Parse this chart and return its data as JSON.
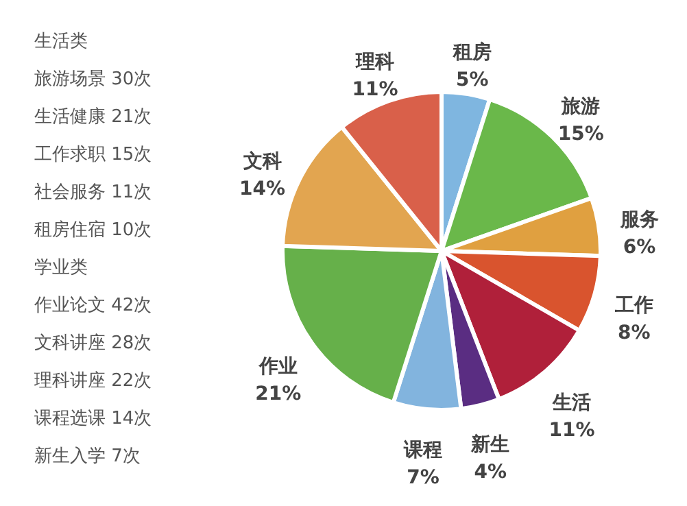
{
  "chart_data": {
    "type": "pie",
    "categories": [
      "租房",
      "旅游",
      "服务",
      "工作",
      "生活",
      "新生",
      "课程",
      "作业",
      "文科",
      "理科"
    ],
    "values": [
      5,
      15,
      6,
      8,
      11,
      4,
      7,
      21,
      14,
      11
    ],
    "value_labels": [
      "5%",
      "15%",
      "6%",
      "8%",
      "11%",
      "4%",
      "7%",
      "21%",
      "14%",
      "11%"
    ],
    "colors": [
      "#7fb6e0",
      "#6ab84a",
      "#e0a040",
      "#d9542e",
      "#b0203a",
      "#5a2d82",
      "#82b4de",
      "#66b04a",
      "#e2a550",
      "#d9604a"
    ],
    "annotations": [
      "生活类",
      "旅游场景  30次",
      "生活健康  21次",
      "工作求职  15次",
      "社会服务  11次",
      "租房住宿  10次",
      "学业类",
      "作业论文  42次",
      "文科讲座  28次",
      "理科讲座  22次",
      "课程选课  14次",
      "新生入学  7次"
    ]
  }
}
